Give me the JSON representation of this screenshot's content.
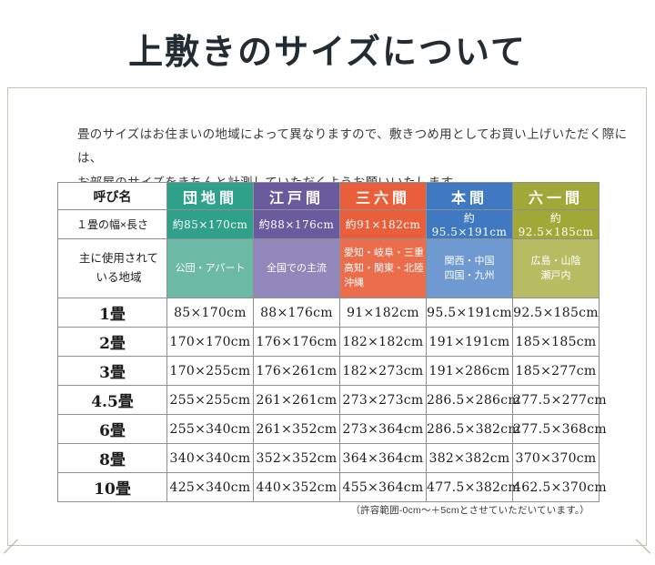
{
  "page": {
    "title": "上敷きのサイズについて",
    "intro_line1": "畳のサイズはお住まいの地域によって異なりますので、敷きつめ用としてお買い上げいただく際には、",
    "intro_line2": "お部屋のサイズをきちんと計測していただくようお願いいたします。",
    "note": "（許容範囲-0cm～＋5cmとさせていただいています。）"
  },
  "table": {
    "header_label": "呼び名",
    "size_row_label": "１畳の幅×長さ",
    "region_label_line1": "主に使用されて",
    "region_label_line2": "いる地域",
    "columns": [
      {
        "name": "団地間",
        "size": "約85×170cm",
        "regions": [
          "公団・アパート"
        ],
        "color": "#2fa08a",
        "light": "#6cb9a6"
      },
      {
        "name": "江戸間",
        "size": "約88×176cm",
        "regions": [
          "全国での主流"
        ],
        "color": "#6a5b9f",
        "light": "#9287ba"
      },
      {
        "name": "三六間",
        "size": "約91×182cm",
        "regions": [
          "愛知・岐阜・三重",
          "高知・関東・北陸",
          "沖縄"
        ],
        "color": "#e95f3c",
        "light": "#eb6d4c"
      },
      {
        "name": "本間",
        "size": "約95.5×191cm",
        "regions": [
          "関西・中国",
          "四国・九州"
        ],
        "color": "#3e79c2",
        "light": "#6f9ad1"
      },
      {
        "name": "六一間",
        "size": "約92.5×185cm",
        "regions": [
          "広島・山陰",
          "瀬戸内"
        ],
        "color": "#a2a838",
        "light": "#b7bc63"
      }
    ],
    "rows": [
      {
        "label": "1畳",
        "values": [
          "85×170cm",
          "88×176cm",
          "91×182cm",
          "95.5×191cm",
          "92.5×185cm"
        ]
      },
      {
        "label": "2畳",
        "values": [
          "170×170cm",
          "176×176cm",
          "182×182cm",
          "191×191cm",
          "185×185cm"
        ]
      },
      {
        "label": "3畳",
        "values": [
          "170×255cm",
          "176×261cm",
          "182×273cm",
          "191×286cm",
          "185×277cm"
        ]
      },
      {
        "label": "4.5畳",
        "values": [
          "255×255cm",
          "261×261cm",
          "273×273cm",
          "286.5×286cm",
          "277.5×277cm"
        ]
      },
      {
        "label": "6畳",
        "values": [
          "255×340cm",
          "261×352cm",
          "273×364cm",
          "286.5×382cm",
          "277.5×368cm"
        ]
      },
      {
        "label": "8畳",
        "values": [
          "340×340cm",
          "352×352cm",
          "364×364cm",
          "382×382cm",
          "370×370cm"
        ]
      },
      {
        "label": "10畳",
        "values": [
          "425×340cm",
          "440×352cm",
          "455×364cm",
          "477.5×382cm",
          "462.5×370cm"
        ]
      }
    ]
  }
}
